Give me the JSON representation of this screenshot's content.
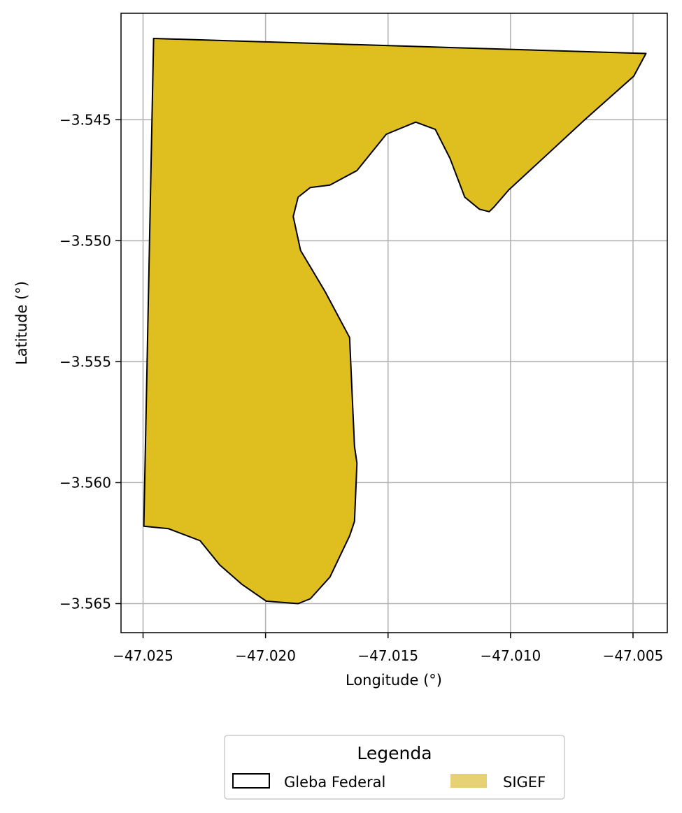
{
  "chart_data": {
    "type": "map",
    "xlabel": "Longitude (°)",
    "ylabel": "Latitude (°)",
    "xlim": [
      -47.0259,
      -47.0036
    ],
    "ylim": [
      -3.5662,
      -3.5406
    ],
    "grid": true,
    "x_ticks": [
      {
        "value": -47.025,
        "label": "−47.025"
      },
      {
        "value": -47.02,
        "label": "−47.020"
      },
      {
        "value": -47.015,
        "label": "−47.015"
      },
      {
        "value": -47.01,
        "label": "−47.010"
      },
      {
        "value": -47.005,
        "label": "−47.005"
      }
    ],
    "y_ticks": [
      {
        "value": -3.545,
        "label": "−3.545"
      },
      {
        "value": -3.55,
        "label": "−3.550"
      },
      {
        "value": -3.555,
        "label": "−3.555"
      },
      {
        "value": -3.56,
        "label": "−3.560"
      },
      {
        "value": -3.565,
        "label": "−3.565"
      }
    ],
    "layers": [
      {
        "name": "SIGEF",
        "fill": "#dfbe1f",
        "stroke": "#000000",
        "coordinates": [
          [
            -47.02457,
            -3.54164
          ],
          [
            -47.00447,
            -3.54226
          ],
          [
            -47.00497,
            -3.5432
          ],
          [
            -47.00697,
            -3.545
          ],
          [
            -47.00857,
            -3.5465
          ],
          [
            -47.01007,
            -3.5479
          ],
          [
            -47.01067,
            -3.5486
          ],
          [
            -47.01087,
            -3.5488
          ],
          [
            -47.01127,
            -3.5487
          ],
          [
            -47.01187,
            -3.5482
          ],
          [
            -47.01247,
            -3.5466
          ],
          [
            -47.01307,
            -3.5454
          ],
          [
            -47.01387,
            -3.5451
          ],
          [
            -47.01507,
            -3.5456
          ],
          [
            -47.01627,
            -3.5471
          ],
          [
            -47.01737,
            -3.5477
          ],
          [
            -47.01817,
            -3.5478
          ],
          [
            -47.01867,
            -3.5482
          ],
          [
            -47.01887,
            -3.549
          ],
          [
            -47.01857,
            -3.5504
          ],
          [
            -47.01757,
            -3.5521
          ],
          [
            -47.01657,
            -3.554
          ],
          [
            -47.01637,
            -3.5585
          ],
          [
            -47.01627,
            -3.5592
          ],
          [
            -47.01637,
            -3.5616
          ],
          [
            -47.01657,
            -3.5622
          ],
          [
            -47.01737,
            -3.5639
          ],
          [
            -47.01817,
            -3.5648
          ],
          [
            -47.01867,
            -3.565
          ],
          [
            -47.01997,
            -3.5649
          ],
          [
            -47.02097,
            -3.5642
          ],
          [
            -47.02187,
            -3.5634
          ],
          [
            -47.02267,
            -3.5624
          ],
          [
            -47.02397,
            -3.5619
          ],
          [
            -47.02497,
            -3.5618
          ]
        ]
      }
    ],
    "legend": {
      "title": "Legenda",
      "placement": "bottom-center",
      "entries": [
        {
          "label": "Gleba Federal",
          "swatch": "outline",
          "stroke": "#000000",
          "fill": "none"
        },
        {
          "label": "SIGEF",
          "swatch": "fill",
          "fill": "#e6d274"
        }
      ]
    }
  }
}
